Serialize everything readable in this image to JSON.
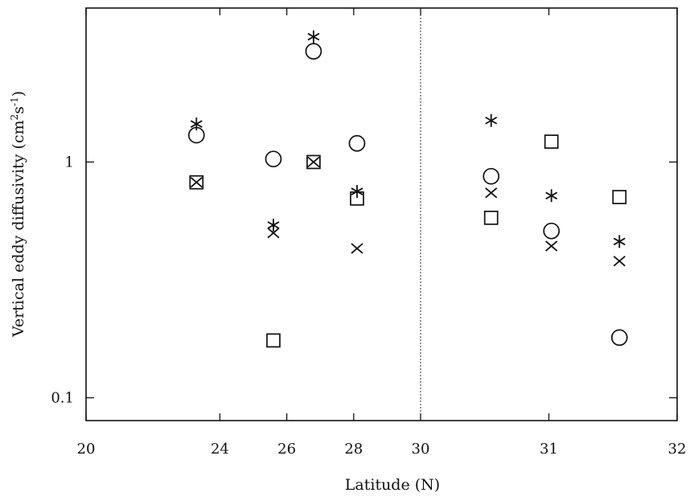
{
  "chart_data": {
    "type": "scatter",
    "title": "",
    "xlabel": "Latitude (N)",
    "ylabel_main": "Vertical eddy diffusivity (cm",
    "ylabel_sup1": "2",
    "ylabel_mid": "s",
    "ylabel_sup2": "-1",
    "ylabel_end": ")",
    "y_scale": "log",
    "ylim": [
      0.08,
      4.5
    ],
    "grid": false,
    "legend": "none",
    "x_axis_note": "broken scale: left panel 20–30 linear, right panel 30–32 linear",
    "left_panel": {
      "xlim": [
        20,
        30
      ],
      "tick_labels": [
        "20",
        "24",
        "26",
        "28",
        "30"
      ],
      "tick_values": [
        20,
        24,
        26,
        28,
        30
      ]
    },
    "right_panel": {
      "xlim": [
        30,
        32
      ],
      "tick_labels": [
        "31",
        "32"
      ],
      "tick_values": [
        31,
        32
      ]
    },
    "y_tick_labels": [
      "0.1",
      "1"
    ],
    "y_tick_values": [
      0.1,
      1
    ],
    "series": [
      {
        "marker": "star",
        "points": [
          {
            "x": 23.3,
            "y": 1.45
          },
          {
            "x": 25.6,
            "y": 0.54
          },
          {
            "x": 26.8,
            "y": 3.4
          },
          {
            "x": 28.1,
            "y": 0.75
          },
          {
            "x": 30.55,
            "y": 1.5
          },
          {
            "x": 31.02,
            "y": 0.72
          },
          {
            "x": 31.55,
            "y": 0.46
          }
        ]
      },
      {
        "marker": "circle",
        "points": [
          {
            "x": 23.3,
            "y": 1.3
          },
          {
            "x": 25.6,
            "y": 1.03
          },
          {
            "x": 26.8,
            "y": 2.95
          },
          {
            "x": 28.1,
            "y": 1.2
          },
          {
            "x": 30.55,
            "y": 0.87
          },
          {
            "x": 31.02,
            "y": 0.51
          },
          {
            "x": 31.55,
            "y": 0.18
          }
        ]
      },
      {
        "marker": "square",
        "points": [
          {
            "x": 23.3,
            "y": 0.82
          },
          {
            "x": 25.6,
            "y": 0.175
          },
          {
            "x": 26.8,
            "y": 1.0
          },
          {
            "x": 28.1,
            "y": 0.7
          },
          {
            "x": 30.55,
            "y": 0.58
          },
          {
            "x": 31.02,
            "y": 1.22
          },
          {
            "x": 31.55,
            "y": 0.71
          }
        ]
      },
      {
        "marker": "x",
        "points": [
          {
            "x": 23.3,
            "y": 0.82
          },
          {
            "x": 25.6,
            "y": 0.5
          },
          {
            "x": 26.8,
            "y": 1.0
          },
          {
            "x": 28.1,
            "y": 0.43
          },
          {
            "x": 30.55,
            "y": 0.74
          },
          {
            "x": 31.02,
            "y": 0.44
          },
          {
            "x": 31.55,
            "y": 0.38
          }
        ]
      }
    ]
  }
}
